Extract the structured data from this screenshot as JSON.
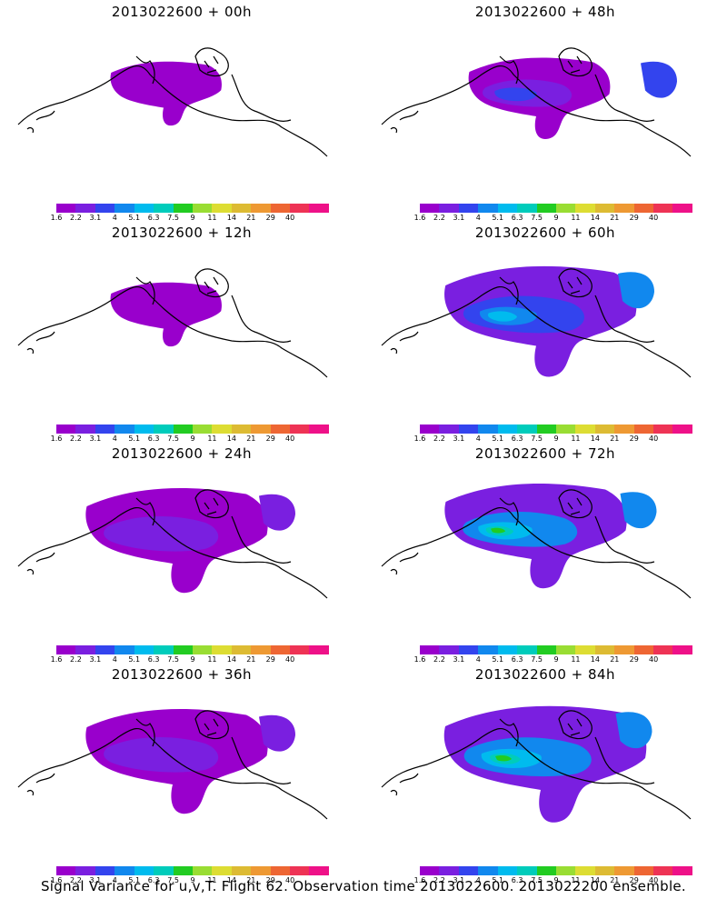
{
  "panels": [
    {
      "title": "2013022600 + 00h",
      "level": 0
    },
    {
      "title": "2013022600 + 48h",
      "level": 2
    },
    {
      "title": "2013022600 + 12h",
      "level": 0
    },
    {
      "title": "2013022600 + 60h",
      "level": 3
    },
    {
      "title": "2013022600 + 24h",
      "level": 1
    },
    {
      "title": "2013022600 + 72h",
      "level": 4
    },
    {
      "title": "2013022600 + 36h",
      "level": 1
    },
    {
      "title": "2013022600 + 84h",
      "level": 5
    }
  ],
  "colorbar": {
    "labels": [
      "1.6",
      "2.2",
      "3.1",
      "4",
      "5.1",
      "6.3",
      "7.5",
      "9",
      "11",
      "14",
      "21",
      "29",
      "40"
    ],
    "colors": [
      "#9900cc",
      "#7a1fe0",
      "#3344ee",
      "#1188ee",
      "#00bbee",
      "#00ccbb",
      "#22cc22",
      "#99dd33",
      "#dddd33",
      "#ddbb33",
      "#ee9933",
      "#ee6633",
      "#ee3355",
      "#ee1188"
    ]
  },
  "footer": "Signal Variance for u,v,T. Flight 62. Observation time 2013022600. 2013022200 ensemble."
}
